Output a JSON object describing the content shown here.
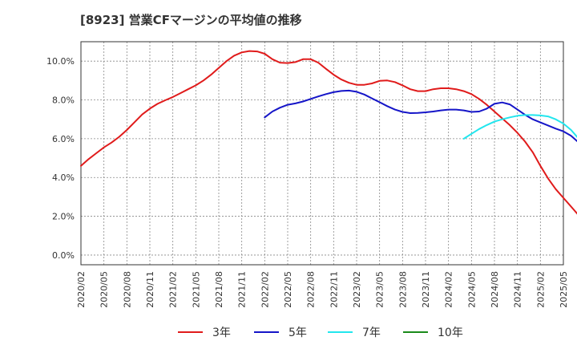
{
  "chart_data": {
    "type": "line",
    "title": "[8923]  営業CFマージンの平均値の推移",
    "xlabel": "",
    "ylabel": "",
    "x_ticks": [
      "2020/02",
      "2020/05",
      "2020/08",
      "2020/11",
      "2021/02",
      "2021/05",
      "2021/08",
      "2021/11",
      "2022/02",
      "2022/05",
      "2022/08",
      "2022/11",
      "2023/02",
      "2023/05",
      "2023/08",
      "2023/11",
      "2024/02",
      "2024/05",
      "2024/08",
      "2024/11",
      "2025/02",
      "2025/05"
    ],
    "y_ticks": [
      "0.0%",
      "2.0%",
      "4.0%",
      "6.0%",
      "8.0%",
      "10.0%"
    ],
    "ylim": [
      -0.5,
      11.0
    ],
    "grid": true,
    "legend_position": "bottom",
    "series": [
      {
        "name": "3年",
        "color": "#e01b1b",
        "points": [
          [
            "2020/02",
            4.6
          ],
          [
            "2020/03",
            4.95
          ],
          [
            "2020/04",
            5.25
          ],
          [
            "2020/05",
            5.55
          ],
          [
            "2020/06",
            5.8
          ],
          [
            "2020/07",
            6.1
          ],
          [
            "2020/08",
            6.45
          ],
          [
            "2020/09",
            6.85
          ],
          [
            "2020/10",
            7.25
          ],
          [
            "2020/11",
            7.55
          ],
          [
            "2020/12",
            7.8
          ],
          [
            "2021/01",
            7.98
          ],
          [
            "2021/02",
            8.15
          ],
          [
            "2021/03",
            8.35
          ],
          [
            "2021/04",
            8.55
          ],
          [
            "2021/05",
            8.75
          ],
          [
            "2021/06",
            9.0
          ],
          [
            "2021/07",
            9.3
          ],
          [
            "2021/08",
            9.65
          ],
          [
            "2021/09",
            10.0
          ],
          [
            "2021/10",
            10.28
          ],
          [
            "2021/11",
            10.45
          ],
          [
            "2021/12",
            10.52
          ],
          [
            "2022/01",
            10.5
          ],
          [
            "2022/02",
            10.38
          ],
          [
            "2022/03",
            10.1
          ],
          [
            "2022/04",
            9.92
          ],
          [
            "2022/05",
            9.9
          ],
          [
            "2022/06",
            9.95
          ],
          [
            "2022/07",
            10.1
          ],
          [
            "2022/08",
            10.1
          ],
          [
            "2022/09",
            9.92
          ],
          [
            "2022/10",
            9.6
          ],
          [
            "2022/11",
            9.3
          ],
          [
            "2022/12",
            9.05
          ],
          [
            "2023/01",
            8.88
          ],
          [
            "2023/02",
            8.78
          ],
          [
            "2023/03",
            8.78
          ],
          [
            "2023/04",
            8.85
          ],
          [
            "2023/05",
            8.98
          ],
          [
            "2023/06",
            9.0
          ],
          [
            "2023/07",
            8.92
          ],
          [
            "2023/08",
            8.75
          ],
          [
            "2023/09",
            8.55
          ],
          [
            "2023/10",
            8.45
          ],
          [
            "2023/11",
            8.45
          ],
          [
            "2023/12",
            8.55
          ],
          [
            "2024/01",
            8.6
          ],
          [
            "2024/02",
            8.6
          ],
          [
            "2024/03",
            8.55
          ],
          [
            "2024/04",
            8.45
          ],
          [
            "2024/05",
            8.3
          ],
          [
            "2024/06",
            8.05
          ],
          [
            "2024/07",
            7.75
          ],
          [
            "2024/08",
            7.4
          ],
          [
            "2024/09",
            7.05
          ],
          [
            "2024/10",
            6.7
          ],
          [
            "2024/11",
            6.3
          ],
          [
            "2024/12",
            5.85
          ],
          [
            "2025/01",
            5.3
          ],
          [
            "2025/02",
            4.6
          ],
          [
            "2025/03",
            3.95
          ],
          [
            "2025/04",
            3.4
          ],
          [
            "2025/05",
            2.95
          ],
          [
            "2025/06",
            2.5
          ],
          [
            "2025/07",
            2.05
          ],
          [
            "2025/08",
            1.6
          ],
          [
            "2025/09",
            1.15
          ],
          [
            "2025/10",
            0.7
          ],
          [
            "2025/11",
            0.3
          ]
        ]
      },
      {
        "name": "5年",
        "color": "#1515c8",
        "points": [
          [
            "2022/02",
            7.1
          ],
          [
            "2022/03",
            7.4
          ],
          [
            "2022/04",
            7.6
          ],
          [
            "2022/05",
            7.75
          ],
          [
            "2022/06",
            7.82
          ],
          [
            "2022/07",
            7.92
          ],
          [
            "2022/08",
            8.05
          ],
          [
            "2022/09",
            8.18
          ],
          [
            "2022/10",
            8.3
          ],
          [
            "2022/11",
            8.4
          ],
          [
            "2022/12",
            8.46
          ],
          [
            "2023/01",
            8.48
          ],
          [
            "2023/02",
            8.42
          ],
          [
            "2023/03",
            8.28
          ],
          [
            "2023/04",
            8.08
          ],
          [
            "2023/05",
            7.88
          ],
          [
            "2023/06",
            7.68
          ],
          [
            "2023/07",
            7.5
          ],
          [
            "2023/08",
            7.38
          ],
          [
            "2023/09",
            7.32
          ],
          [
            "2023/10",
            7.33
          ],
          [
            "2023/11",
            7.36
          ],
          [
            "2023/12",
            7.4
          ],
          [
            "2024/01",
            7.46
          ],
          [
            "2024/02",
            7.5
          ],
          [
            "2024/03",
            7.5
          ],
          [
            "2024/04",
            7.46
          ],
          [
            "2024/05",
            7.38
          ],
          [
            "2024/06",
            7.4
          ],
          [
            "2024/07",
            7.55
          ],
          [
            "2024/08",
            7.8
          ],
          [
            "2024/09",
            7.87
          ],
          [
            "2024/10",
            7.77
          ],
          [
            "2024/11",
            7.5
          ],
          [
            "2024/12",
            7.23
          ],
          [
            "2025/01",
            7.0
          ],
          [
            "2025/02",
            6.84
          ],
          [
            "2025/03",
            6.68
          ],
          [
            "2025/04",
            6.52
          ],
          [
            "2025/05",
            6.38
          ],
          [
            "2025/06",
            6.15
          ],
          [
            "2025/07",
            5.8
          ],
          [
            "2025/08",
            5.3
          ]
        ]
      },
      {
        "name": "7年",
        "color": "#22e6ee",
        "points": [
          [
            "2024/04",
            6.0
          ],
          [
            "2024/05",
            6.25
          ],
          [
            "2024/06",
            6.5
          ],
          [
            "2024/07",
            6.7
          ],
          [
            "2024/08",
            6.88
          ],
          [
            "2024/09",
            7.0
          ],
          [
            "2024/10",
            7.1
          ],
          [
            "2024/11",
            7.18
          ],
          [
            "2024/12",
            7.22
          ],
          [
            "2025/01",
            7.22
          ],
          [
            "2025/02",
            7.2
          ],
          [
            "2025/03",
            7.15
          ],
          [
            "2025/04",
            7.0
          ],
          [
            "2025/05",
            6.78
          ],
          [
            "2025/06",
            6.45
          ],
          [
            "2025/07",
            6.0
          ],
          [
            "2025/08",
            5.45
          ]
        ]
      },
      {
        "name": "10年",
        "color": "#1a8a1a",
        "points": []
      }
    ]
  }
}
